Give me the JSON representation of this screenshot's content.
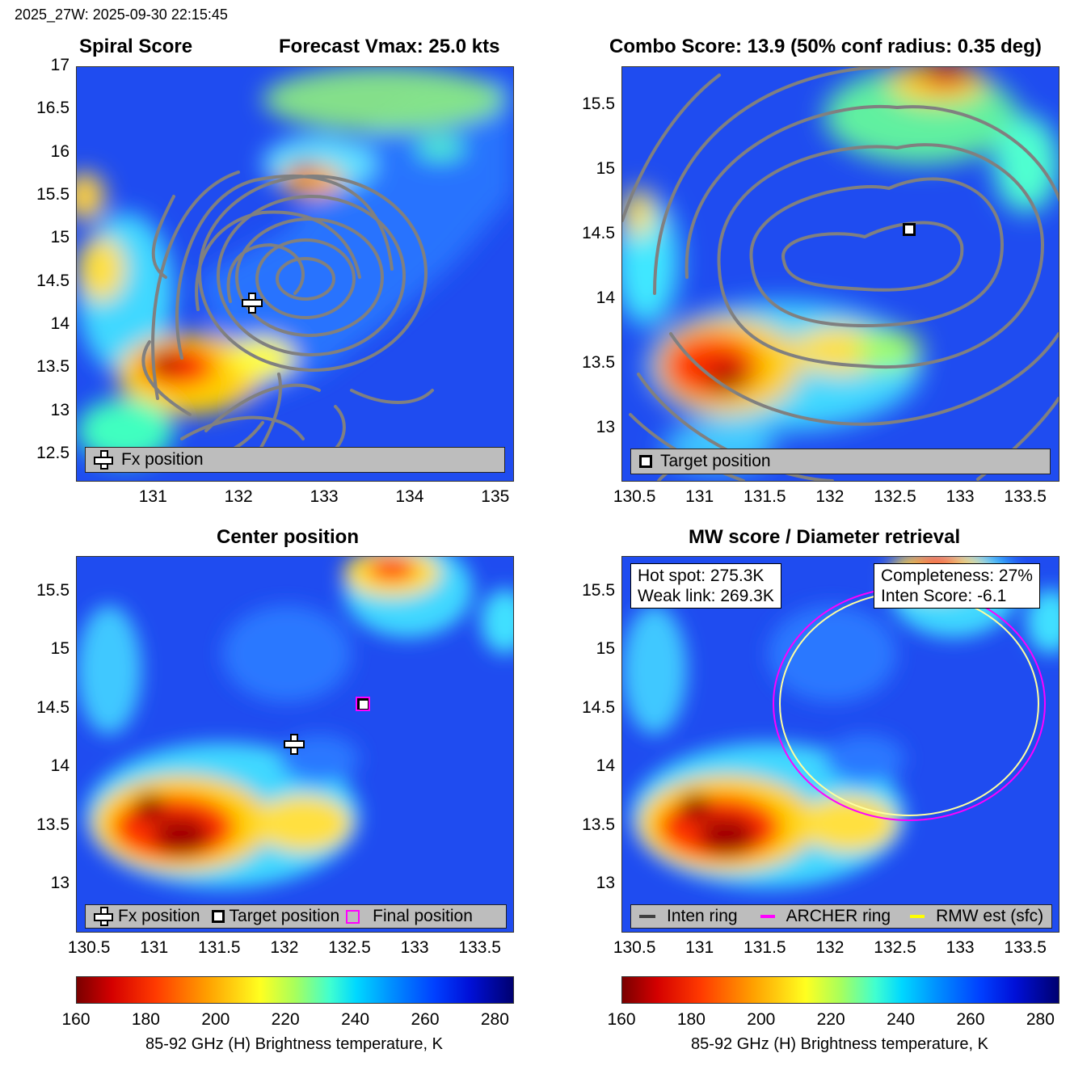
{
  "figure_title": "2025_27W: 2025-09-30 22:15:45",
  "panels": {
    "spiral": {
      "title_left": "Spiral Score",
      "title_right": "Forecast Vmax: 25.0 kts",
      "xticks": [
        "131",
        "132",
        "133",
        "134",
        "135"
      ],
      "yticks": [
        "17",
        "16.5",
        "16",
        "15.5",
        "15",
        "14.5",
        "14",
        "13.5",
        "13",
        "12.5"
      ],
      "legend": [
        "Fx position"
      ],
      "marker_icon": "cross-icon"
    },
    "combo": {
      "title": "Combo Score: 13.9  (50% conf radius: 0.35 deg)",
      "xticks": [
        "130.5",
        "131",
        "131.5",
        "132",
        "132.5",
        "133",
        "133.5"
      ],
      "yticks": [
        "15.5",
        "15",
        "14.5",
        "14",
        "13.5",
        "13"
      ],
      "legend": [
        "Target position"
      ]
    },
    "center": {
      "title": "Center position",
      "xticks": [
        "130.5",
        "131",
        "131.5",
        "132",
        "132.5",
        "133",
        "133.5"
      ],
      "yticks": [
        "15.5",
        "15",
        "14.5",
        "14",
        "13.5",
        "13"
      ],
      "legend": [
        "Fx position",
        "Target position",
        "Final position"
      ]
    },
    "mw": {
      "title": "MW score / Diameter retrieval",
      "xticks": [
        "130.5",
        "131",
        "131.5",
        "132",
        "132.5",
        "133",
        "133.5"
      ],
      "yticks": [
        "15.5",
        "15",
        "14.5",
        "14",
        "13.5",
        "13"
      ],
      "hot_spot": "Hot spot: 275.3K",
      "weak_link": "Weak link: 269.3K",
      "completeness": "Completeness: 27%",
      "inten_score": "Inten Score: -6.1",
      "legend": [
        "Inten ring",
        "ARCHER ring",
        "RMW est (sfc)"
      ]
    }
  },
  "colorbar": {
    "ticks": [
      "160",
      "180",
      "200",
      "220",
      "240",
      "260",
      "280"
    ],
    "label": "85-92 GHz (H) Brightness temperature, K"
  },
  "colors": {
    "contour": "#808080",
    "archer_ring": "#ff00ff",
    "rmw_ring": "#ffff00",
    "inten_ring": "#404040",
    "background_field": "#1f4cf0"
  },
  "chart_data": [
    {
      "type": "heatmap",
      "xlim": [
        130.1,
        135.2
      ],
      "ylim": [
        12.2,
        17.0
      ],
      "markers": [
        {
          "label": "Fx position",
          "x": 132.08,
          "y": 14.18
        }
      ]
    },
    {
      "type": "heatmap",
      "xlim": [
        130.4,
        133.75
      ],
      "ylim": [
        12.6,
        15.8
      ],
      "markers": [
        {
          "label": "Target position",
          "x": 132.6,
          "y": 14.53
        }
      ]
    },
    {
      "type": "heatmap",
      "xlim": [
        130.4,
        133.75
      ],
      "ylim": [
        12.6,
        15.8
      ],
      "markers": [
        {
          "label": "Fx position",
          "x": 132.08,
          "y": 14.18
        },
        {
          "label": "Target position",
          "x": 132.6,
          "y": 14.53
        },
        {
          "label": "Final position",
          "x": 132.6,
          "y": 14.53
        }
      ]
    },
    {
      "type": "heatmap",
      "xlim": [
        130.4,
        133.75
      ],
      "ylim": [
        12.6,
        15.8
      ],
      "rings": [
        {
          "label": "ARCHER ring",
          "cx": 132.6,
          "cy": 14.53,
          "rx": 1.05,
          "ry": 0.98
        },
        {
          "label": "RMW est (sfc)",
          "cx": 132.6,
          "cy": 14.53,
          "rx": 1.0,
          "ry": 0.94
        }
      ]
    }
  ]
}
